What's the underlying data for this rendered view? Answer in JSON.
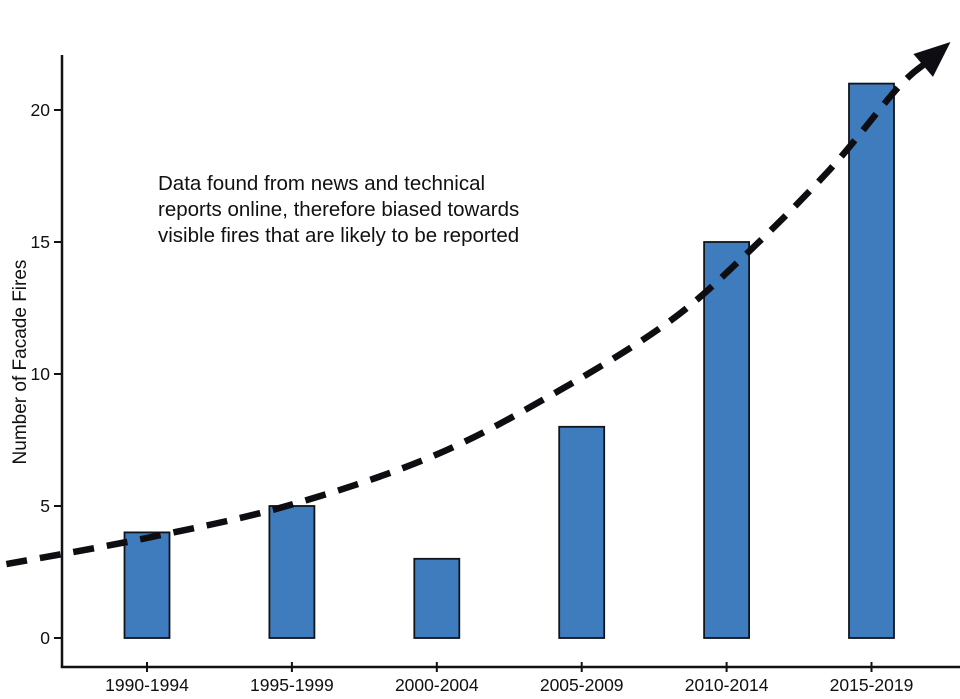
{
  "chart_data": {
    "type": "bar",
    "title": "",
    "categories": [
      "1990-1994",
      "1995-1999",
      "2000-2004",
      "2005-2009",
      "2010-2014",
      "2015-2019"
    ],
    "values": [
      4,
      5,
      3,
      8,
      15,
      21
    ],
    "xlabel": "",
    "ylabel": "Number of Facade Fires",
    "yticks": [
      0,
      5,
      10,
      15,
      20
    ],
    "ylim": [
      0,
      22.5
    ],
    "grid": false,
    "legend": "none",
    "bar_color": "#3e7cbd",
    "bar_edge_color": "#10151c",
    "axis_color": "#111111",
    "annotation": {
      "lines": [
        "Data found from news and technical",
        "reports online, therefore biased towards",
        "visible fires that are likely to be reported"
      ]
    },
    "trend_arrow": {
      "style": "dashed",
      "color": "#0d0d12",
      "points_xy": [
        [
          -0.97,
          2.8
        ],
        [
          0.0,
          3.79
        ],
        [
          0.99,
          5.04
        ],
        [
          1.99,
          6.93
        ],
        [
          2.85,
          9.39
        ],
        [
          3.6,
          11.97
        ],
        [
          4.13,
          14.51
        ],
        [
          4.71,
          17.73
        ],
        [
          5.18,
          20.83
        ],
        [
          5.38,
          21.8
        ]
      ]
    }
  }
}
